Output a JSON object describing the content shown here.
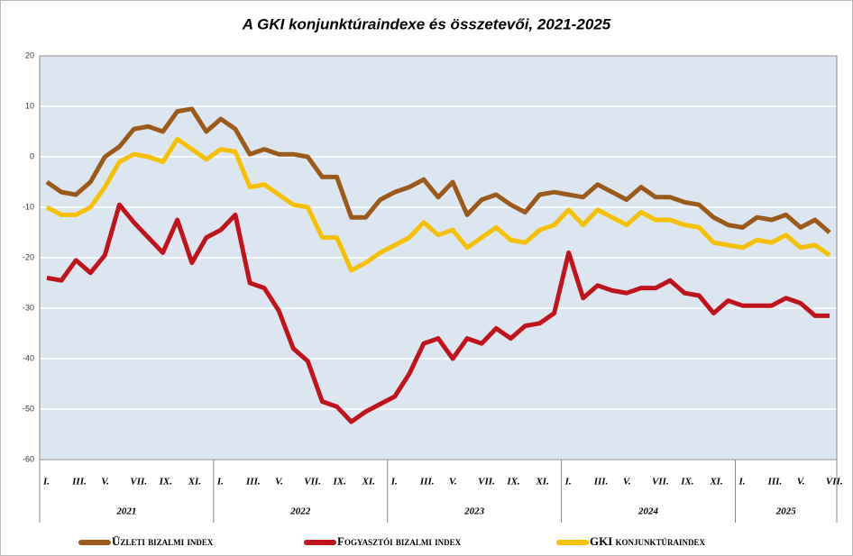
{
  "chart_data": {
    "type": "line",
    "title": "A GKI konjunktúraindexe és összetevői, 2021-2025",
    "categories": [
      "I.",
      null,
      "III.",
      null,
      "V.",
      null,
      "VII.",
      null,
      "IX.",
      null,
      "XI.",
      null,
      "I.",
      null,
      "III.",
      null,
      "V.",
      null,
      "VII.",
      null,
      "IX.",
      null,
      "XI.",
      null,
      "I.",
      null,
      "III.",
      null,
      "V.",
      null,
      "VII.",
      null,
      "IX.",
      null,
      "XI.",
      null,
      "I.",
      null,
      "III.",
      null,
      "V.",
      null,
      "VII.",
      null,
      "IX.",
      null,
      "XI.",
      null,
      "I.",
      null,
      "III.",
      null,
      "V.",
      null,
      "VII."
    ],
    "years": [
      "2021",
      "2022",
      "2023",
      "2024",
      "2025"
    ],
    "series": [
      {
        "name": "Üzleti bizalmi index",
        "color": "#9c5a1a",
        "values": [
          -5,
          -7,
          -7.5,
          -5,
          0,
          2,
          5.5,
          6,
          5,
          9,
          9.5,
          5,
          7.5,
          5.5,
          0.5,
          1.5,
          0.5,
          0.5,
          0,
          -4,
          -4,
          -12,
          -12,
          -8.5,
          -7,
          -6,
          -4.5,
          -8,
          -5,
          -11.5,
          -8.5,
          -7.5,
          -9.5,
          -11,
          -7.5,
          -7,
          -7.5,
          -8,
          -5.5,
          -7,
          -8.5,
          -6,
          -8,
          -8,
          -9,
          -9.5,
          -12,
          -13.5,
          -14,
          -12,
          -12.5,
          -11.5,
          -14,
          -12.5,
          -15
        ]
      },
      {
        "name": "Fogyasztói bizalmi index",
        "color": "#c0141c",
        "values": [
          -24,
          -24.5,
          -20.5,
          -23,
          -19.5,
          -9.5,
          -13,
          -16,
          -19,
          -12.5,
          -21,
          -16,
          -14.5,
          -11.5,
          -25,
          -26,
          -30.5,
          -38,
          -40.5,
          -48.5,
          -49.5,
          -52.5,
          -50.5,
          -49,
          -47.5,
          -43,
          -37,
          -36,
          -40,
          -36,
          -37,
          -34,
          -36,
          -33.5,
          -33,
          -31,
          -19,
          -28,
          -25.5,
          -26.5,
          -27,
          -26,
          -26,
          -24.5,
          -27,
          -27.5,
          -31,
          -28.5,
          -29.5,
          -29.5,
          -29.5,
          -28,
          -29,
          -31.5,
          -31.5
        ]
      },
      {
        "name": "GKI konjunktúraindex",
        "color": "#f5c000",
        "values": [
          -10,
          -11.5,
          -11.5,
          -10,
          -6,
          -1,
          0.5,
          0,
          -1,
          3.5,
          1.5,
          -0.5,
          1.5,
          1,
          -6,
          -5.5,
          -7.5,
          -9.5,
          -10,
          -16,
          -16,
          -22.5,
          -21,
          -19,
          -17.5,
          -16,
          -13,
          -15.5,
          -14.5,
          -18,
          -16,
          -14,
          -16.5,
          -17,
          -14.5,
          -13.5,
          -10.5,
          -13.5,
          -10.5,
          -12,
          -13.5,
          -11,
          -12.5,
          -12.5,
          -13.5,
          -14,
          -17,
          -17.5,
          -18,
          -16.5,
          -17,
          -15.5,
          -18,
          -17.5,
          -19.5
        ]
      }
    ],
    "ylim": [
      -60,
      20
    ],
    "yticks": [
      -60,
      -50,
      -40,
      -30,
      -20,
      -10,
      0,
      10,
      20
    ],
    "grid": true
  }
}
